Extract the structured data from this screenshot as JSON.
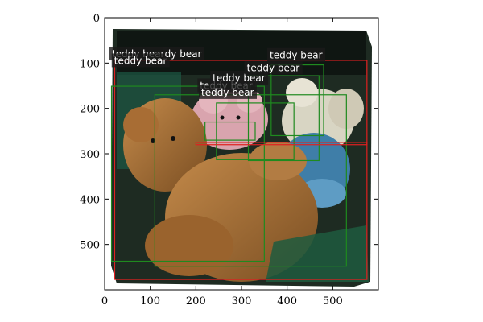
{
  "axes": {
    "x_ticks": [
      0,
      100,
      200,
      300,
      400,
      500
    ],
    "y_ticks": [
      0,
      100,
      200,
      300,
      400,
      500
    ],
    "xlim": [
      0,
      600
    ],
    "ylim": [
      600,
      0
    ]
  },
  "colors": {
    "ground_truth_box": "#e02020",
    "prediction_box": "#1f8a1f",
    "label_background": "#1a1a1a"
  },
  "photo": {
    "description_icon": "photo-of-teddy-bears"
  },
  "detections": [
    {
      "label": "teddy bear",
      "kind": "gt",
      "x0": 22,
      "y0": 94,
      "x1": 575,
      "y1": 577
    },
    {
      "label": "teddy bear",
      "kind": "pred",
      "x0": 15,
      "y0": 151,
      "x1": 350,
      "y1": 537
    },
    {
      "label": "teddy bear",
      "kind": "pred",
      "x0": 110,
      "y0": 170,
      "x1": 530,
      "y1": 548
    },
    {
      "label": "teddy bear",
      "kind": "pred",
      "x0": 245,
      "y0": 188,
      "x1": 415,
      "y1": 313
    },
    {
      "label": "teddy bear",
      "kind": "pred",
      "x0": 220,
      "y0": 230,
      "x1": 330,
      "y1": 270
    },
    {
      "label": "teddy bear",
      "kind": "pred",
      "x0": 315,
      "y0": 128,
      "x1": 470,
      "y1": 315
    },
    {
      "label": "teddy bear",
      "kind": "pred",
      "x0": 365,
      "y0": 104,
      "x1": 480,
      "y1": 260
    },
    {
      "label": "teddy bear",
      "kind": "gt",
      "x0": 200,
      "y0": 275,
      "x1": 575,
      "y1": 280
    }
  ],
  "labels": [
    {
      "text": "teddy bear",
      "x": 14,
      "y": 87
    },
    {
      "text": "teddy bear",
      "x": 19,
      "y": 102
    },
    {
      "text": "dy bear",
      "x": 130,
      "y": 87
    },
    {
      "text": "teddy bear",
      "x": 207,
      "y": 157
    },
    {
      "text": "teddy bear",
      "x": 235,
      "y": 140
    },
    {
      "text": "teddy bear",
      "x": 210,
      "y": 172
    },
    {
      "text": "teddy bear",
      "x": 310,
      "y": 118
    },
    {
      "text": "teddy bear",
      "x": 360,
      "y": 90
    }
  ]
}
